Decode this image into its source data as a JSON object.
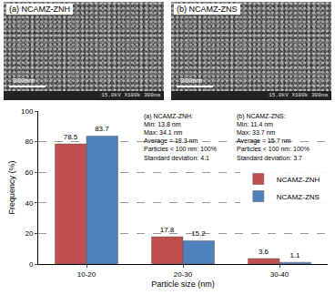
{
  "images": [
    {
      "label": "(a) NCAMZ-ZNH",
      "scale_bar": "300nm",
      "info": "15.0kV X100k 300nm"
    },
    {
      "label": "(b) NCAMZ-ZNS",
      "scale_bar": "300nm",
      "info": "15.0kV X100k 300nm"
    }
  ],
  "chart_data": {
    "type": "bar",
    "x_label": "Particle size (nm)",
    "y_label": "Frequency (%)",
    "categories": [
      "10-20",
      "20-30",
      "30-40"
    ],
    "series": [
      {
        "name": "NCAMZ-ZNH",
        "color": "#c0504d",
        "values": [
          78.5,
          17.8,
          3.6
        ]
      },
      {
        "name": "NCAMZ-ZNS",
        "color": "#4f81bd",
        "values": [
          83.7,
          15.2,
          1.1
        ]
      }
    ],
    "ylim": [
      0,
      100
    ],
    "yticks": [
      0,
      20,
      40,
      60,
      80,
      100
    ],
    "grid": true,
    "legend": "right",
    "data_labels": true,
    "annotations": [
      [
        "(a) NCAMZ-ZNH:",
        "Min: 13.8 nm",
        "Max: 34.1 nm",
        "Average = 18.3 nm",
        "Particles < 100 nm: 100%",
        "Standard deviation: 4.1"
      ],
      [
        "(b) NCAMZ-ZNS:",
        "Min: 11.4 nm",
        "Max: 33.7 nm",
        "Average = 15.7 nm",
        "Particles < 100 nm: 100%",
        "Standard deviation: 3.7"
      ]
    ]
  }
}
